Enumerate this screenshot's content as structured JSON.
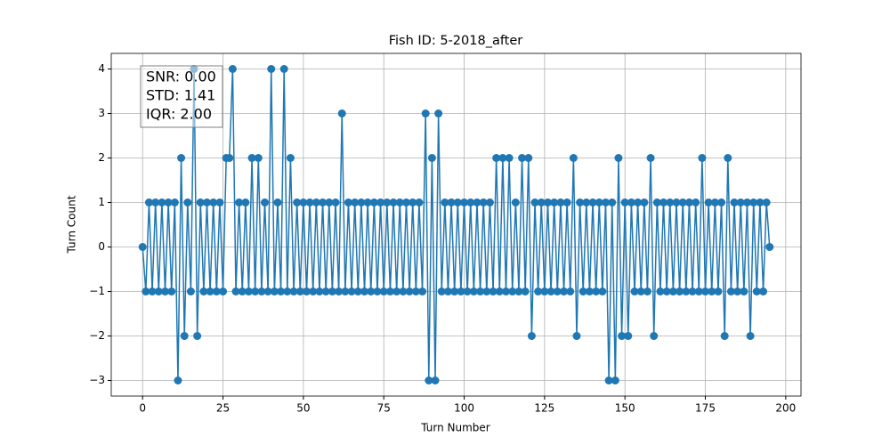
{
  "chart_data": {
    "type": "line",
    "title": "Fish ID: 5-2018_after",
    "x_label": "Turn Number",
    "y_label": "Turn Count",
    "annotation": [
      "SNR: 0.00",
      "STD: 1.41",
      "IQR: 2.00"
    ],
    "x": [
      0,
      1,
      2,
      3,
      4,
      5,
      6,
      7,
      8,
      9,
      10,
      11,
      12,
      13,
      14,
      15,
      16,
      17,
      18,
      19,
      20,
      21,
      22,
      23,
      24,
      25,
      26,
      27,
      28,
      29,
      30,
      31,
      32,
      33,
      34,
      35,
      36,
      37,
      38,
      39,
      40,
      41,
      42,
      43,
      44,
      45,
      46,
      47,
      48,
      49,
      50,
      51,
      52,
      53,
      54,
      55,
      56,
      57,
      58,
      59,
      60,
      61,
      62,
      63,
      64,
      65,
      66,
      67,
      68,
      69,
      70,
      71,
      72,
      73,
      74,
      75,
      76,
      77,
      78,
      79,
      80,
      81,
      82,
      83,
      84,
      85,
      86,
      87,
      88,
      89,
      90,
      91,
      92,
      93,
      94,
      95,
      96,
      97,
      98,
      99,
      100,
      101,
      102,
      103,
      104,
      105,
      106,
      107,
      108,
      109,
      110,
      111,
      112,
      113,
      114,
      115,
      116,
      117,
      118,
      119,
      120,
      121,
      122,
      123,
      124,
      125,
      126,
      127,
      128,
      129,
      130,
      131,
      132,
      133,
      134,
      135,
      136,
      137,
      138,
      139,
      140,
      141,
      142,
      143,
      144,
      145,
      146,
      147,
      148,
      149,
      150,
      151,
      152,
      153,
      154,
      155,
      156,
      157,
      158,
      159,
      160,
      161,
      162,
      163,
      164,
      165,
      166,
      167,
      168,
      169,
      170,
      171,
      172,
      173,
      174,
      175,
      176,
      177,
      178,
      179,
      180,
      181,
      182,
      183,
      184,
      185,
      186,
      187,
      188,
      189,
      190,
      191,
      192,
      193,
      194,
      195
    ],
    "series": [
      {
        "name": "Turn Count",
        "color": "#1f77b4",
        "values": [
          0,
          -1,
          1,
          -1,
          1,
          -1,
          1,
          -1,
          1,
          -1,
          1,
          -3,
          2,
          -2,
          1,
          -1,
          4,
          -2,
          1,
          -1,
          1,
          -1,
          1,
          -1,
          1,
          -1,
          2,
          2,
          4,
          -1,
          1,
          -1,
          1,
          -1,
          2,
          -1,
          2,
          -1,
          1,
          -1,
          4,
          -1,
          1,
          -1,
          4,
          -1,
          2,
          -1,
          1,
          -1,
          1,
          -1,
          1,
          -1,
          1,
          -1,
          1,
          -1,
          1,
          -1,
          1,
          -1,
          3,
          -1,
          1,
          -1,
          1,
          -1,
          1,
          -1,
          1,
          -1,
          1,
          -1,
          1,
          -1,
          1,
          -1,
          1,
          -1,
          1,
          -1,
          1,
          -1,
          1,
          -1,
          1,
          -1,
          3,
          -3,
          2,
          -3,
          3,
          -1,
          1,
          -1,
          1,
          -1,
          1,
          -1,
          1,
          -1,
          1,
          -1,
          1,
          -1,
          1,
          -1,
          1,
          -1,
          2,
          -1,
          2,
          -1,
          2,
          -1,
          1,
          -1,
          2,
          -1,
          2,
          -2,
          1,
          -1,
          1,
          -1,
          1,
          -1,
          1,
          -1,
          1,
          -1,
          1,
          -1,
          2,
          -2,
          1,
          -1,
          1,
          -1,
          1,
          -1,
          1,
          -1,
          1,
          -3,
          1,
          -3,
          2,
          -2,
          1,
          -2,
          1,
          -1,
          1,
          -1,
          1,
          -1,
          2,
          -2,
          1,
          -1,
          1,
          -1,
          1,
          -1,
          1,
          -1,
          1,
          -1,
          1,
          -1,
          1,
          -1,
          2,
          -1,
          1,
          -1,
          1,
          -1,
          1,
          -2,
          2,
          -1,
          1,
          -1,
          1,
          -1,
          1,
          -2,
          1,
          -1,
          1,
          -1,
          1,
          0
        ]
      }
    ],
    "xlim": [
      -9.75,
      204.75
    ],
    "ylim": [
      -3.35,
      4.35
    ],
    "xticks": [
      0,
      25,
      50,
      75,
      100,
      125,
      150,
      175,
      200
    ],
    "yticks": [
      {
        "value": -3,
        "label": "−3"
      },
      {
        "value": -2,
        "label": "−2"
      },
      {
        "value": -1,
        "label": "−1"
      },
      0,
      1,
      2,
      3,
      4
    ],
    "grid": true
  }
}
